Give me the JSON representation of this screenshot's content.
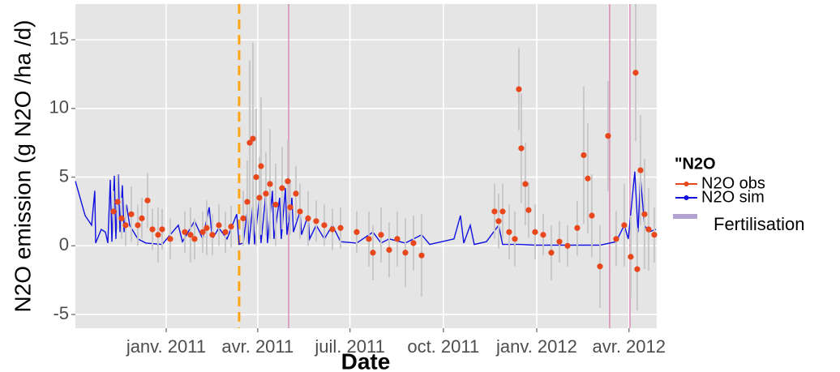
{
  "chart_data": {
    "type": "timeseries",
    "y_label": "N2O emission (g N2O /ha /d)",
    "x_label": "Date",
    "legend_title": "\"N2O",
    "legend_position": "right",
    "grid": true,
    "xlim": [
      2010.755,
      2012.324
    ],
    "ylim": [
      -6,
      17.6
    ],
    "xticks": [
      {
        "value": 2011.0,
        "label": "janv. 2011"
      },
      {
        "value": 2011.247,
        "label": "avr. 2011"
      },
      {
        "value": 2011.496,
        "label": "juil. 2011"
      },
      {
        "value": 2011.748,
        "label": "oct. 2011"
      },
      {
        "value": 2012.0,
        "label": "janv. 2012"
      },
      {
        "value": 2012.249,
        "label": "avr. 2012"
      }
    ],
    "yticks": [
      -5,
      0,
      5,
      10,
      15
    ],
    "series": [
      {
        "name": "N2O obs",
        "color": "#e8461b",
        "error_color": "#c8c8c8",
        "style": "points",
        "x": [
          2010.8578,
          2010.8687,
          2010.8796,
          2010.8906,
          2010.9059,
          2010.9234,
          2010.9344,
          2010.9497,
          2010.9628,
          2010.9781,
          2010.9891,
          2011.0109,
          2011.0503,
          2011.0656,
          2011.0766,
          2011.0985,
          2011.1094,
          2011.1247,
          2011.1422,
          2011.1597,
          2011.1751,
          2011.2079,
          2011.2188,
          2011.2254,
          2011.2341,
          2011.2429,
          2011.2516,
          2011.256,
          2011.2691,
          2011.2801,
          2011.2954,
          2011.3129,
          2011.3282,
          2011.3348,
          2011.3501,
          2011.3611,
          2011.3829,
          2011.4048,
          2011.4267,
          2011.4486,
          2011.4705,
          2011.5142,
          2011.547,
          2011.558,
          2011.5799,
          2011.6018,
          2011.6236,
          2011.6455,
          2011.6674,
          2011.6893,
          2011.8862,
          2011.8972,
          2011.9081,
          2011.9256,
          2011.9409,
          2011.9519,
          2011.9584,
          2011.9694,
          2011.9781,
          2011.9956,
          2012.0175,
          2012.0394,
          2012.0613,
          2012.0832,
          2012.1094,
          2012.1269,
          2012.1379,
          2012.1488,
          2012.1707,
          2012.1926,
          2012.2144,
          2012.2363,
          2012.2538,
          2012.267,
          2012.2713,
          2012.2801,
          2012.291,
          2012.302,
          2012.3173
        ],
        "values": [
          2.5,
          3.2,
          2.0,
          1.5,
          2.3,
          1.5,
          2.0,
          3.3,
          1.2,
          0.8,
          1.2,
          0.5,
          1.0,
          0.8,
          0.5,
          1.0,
          1.3,
          0.8,
          1.5,
          1.0,
          1.4,
          2.0,
          3.2,
          7.5,
          7.8,
          5.0,
          3.5,
          5.8,
          3.8,
          4.5,
          3.0,
          4.2,
          4.7,
          2.8,
          3.8,
          2.5,
          2.0,
          1.8,
          1.5,
          1.2,
          1.3,
          1.0,
          0.5,
          -0.5,
          0.8,
          -0.3,
          0.5,
          -0.5,
          0.2,
          -0.7,
          2.5,
          1.8,
          2.5,
          1.0,
          0.5,
          11.4,
          7.1,
          4.5,
          2.6,
          1.0,
          0.8,
          -0.5,
          0.3,
          0.0,
          1.3,
          6.6,
          4.9,
          2.2,
          -1.5,
          8.0,
          0.5,
          1.5,
          -0.8,
          12.6,
          -1.7,
          5.5,
          2.3,
          1.2,
          0.8
        ],
        "errors": [
          1.5,
          2,
          1.5,
          1.5,
          2,
          1.5,
          1.5,
          2,
          1.5,
          2,
          1.5,
          1.5,
          1.5,
          2,
          1.5,
          1.5,
          2,
          1.5,
          1.5,
          1.5,
          1.5,
          2,
          3,
          6,
          7,
          5,
          3,
          5,
          3,
          4,
          3,
          3,
          3,
          2,
          2,
          2,
          2,
          1.5,
          1.5,
          1.5,
          1.5,
          1.5,
          2,
          2,
          2,
          2,
          2,
          2.5,
          2,
          3,
          2,
          2,
          2,
          2,
          2,
          3,
          4,
          3,
          2,
          2,
          1.5,
          2,
          1.5,
          1.5,
          2,
          5,
          4,
          3,
          3,
          4,
          2,
          3,
          3,
          5,
          3,
          4,
          4,
          3,
          2
        ]
      },
      {
        "name": "N2O sim",
        "color": "#1010e0",
        "style": "line",
        "x": [
          2010.7549,
          2010.7812,
          2010.7987,
          2010.8074,
          2010.8096,
          2010.8249,
          2010.8359,
          2010.8425,
          2010.849,
          2010.8534,
          2010.86,
          2010.8643,
          2010.8709,
          2010.8753,
          2010.8818,
          2010.8862,
          2010.8928,
          2010.9015,
          2010.9234,
          2010.9453,
          2010.9891,
          2011.0109,
          2011.0328,
          2011.0438,
          2011.0766,
          2011.0985,
          2011.116,
          2011.1247,
          2011.1422,
          2011.1641,
          2011.1904,
          2011.1969,
          2011.2079,
          2011.2188,
          2011.2232,
          2011.2341,
          2011.2385,
          2011.2516,
          2011.256,
          2011.2691,
          2011.2735,
          2011.2867,
          2011.291,
          2011.3063,
          2011.3107,
          2011.3217,
          2011.326,
          2011.3392,
          2011.3435,
          2011.3611,
          2011.3654,
          2011.3829,
          2011.3873,
          2011.4048,
          2011.4267,
          2011.4486,
          2011.4705,
          2011.5142,
          2011.558,
          2011.5799,
          2011.6018,
          2011.6455,
          2011.6893,
          2011.7112,
          2011.744,
          2011.7768,
          2011.7943,
          2011.8031,
          2011.8206,
          2011.8315,
          2011.8643,
          2011.8972,
          2011.9081,
          2011.9519,
          2011.9956,
          2012.0832,
          2012.1707,
          2012.2144,
          2012.2363,
          2012.2473,
          2012.2648,
          2012.2735,
          2012.2801,
          2012.291,
          2012.302,
          2012.3217
        ],
        "values": [
          4.7,
          2.2,
          1.5,
          4.0,
          0.2,
          1.2,
          1.0,
          0.2,
          4.8,
          0.3,
          5.1,
          0.5,
          5.2,
          1.0,
          4.4,
          1.0,
          3.0,
          1.5,
          0.5,
          0.2,
          0.1,
          0.8,
          1.5,
          0.3,
          1.8,
          0.5,
          2.8,
          0.5,
          1.3,
          0.5,
          2.3,
          0.1,
          0.2,
          2.5,
          0.1,
          3.0,
          0.1,
          3.5,
          0.2,
          3.8,
          0.2,
          4.0,
          0.5,
          3.5,
          0.5,
          4.2,
          0.8,
          3.5,
          1.0,
          2.5,
          0.8,
          2.2,
          0.5,
          1.5,
          0.5,
          1.5,
          0.3,
          0.2,
          1.0,
          0.2,
          0.5,
          0.2,
          0.8,
          0.1,
          0.3,
          0.5,
          2.2,
          0.2,
          1.5,
          0.1,
          0.3,
          1.5,
          0.1,
          0.1,
          0.05,
          0.05,
          0.05,
          0.3,
          1.5,
          0.5,
          5.4,
          1.0,
          5.0,
          1.5,
          1.0,
          1.2
        ]
      }
    ],
    "fertilisation": {
      "name": "Fertilisation",
      "color": "#d98cb5",
      "legend_color": "#b3a3d1",
      "x": [
        2011.3304,
        2012.1969,
        2012.2516
      ]
    },
    "event_line": {
      "x": 2011.1969,
      "color": "#ffa319"
    }
  }
}
